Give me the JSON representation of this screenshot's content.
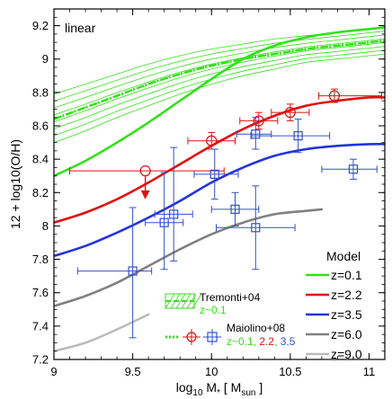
{
  "chart_data": {
    "type": "line",
    "panel_label": "linear",
    "xlabel": "log10 M* [ Msun ]",
    "ylabel": "12 + log10(O/H)",
    "xlim": [
      9,
      11.1
    ],
    "ylim": [
      7.2,
      9.3
    ],
    "x_ticks": [
      9,
      9.5,
      10,
      10.5,
      11
    ],
    "x_tick_labels": [
      "9",
      "9.5",
      "10",
      "10.5",
      "11"
    ],
    "y_ticks": [
      7.2,
      7.4,
      7.6,
      7.8,
      8,
      8.2,
      8.4,
      8.6,
      8.8,
      9,
      9.2
    ],
    "y_tick_labels": [
      "7.2",
      "7.4",
      "7.6",
      "7.8",
      "8",
      "8.2",
      "8.4",
      "8.6",
      "8.8",
      "9",
      "9.2"
    ],
    "legend_title": "Model",
    "series": [
      {
        "name": "z=0.1",
        "color": "#33e01a",
        "x": [
          9.0,
          9.2,
          9.4,
          9.6,
          9.8,
          10.0,
          10.2,
          10.4,
          10.6,
          10.8,
          11.0,
          11.1
        ],
        "y": [
          8.3,
          8.39,
          8.5,
          8.62,
          8.75,
          8.88,
          9.0,
          9.08,
          9.13,
          9.16,
          9.18,
          9.19
        ]
      },
      {
        "name": "z=2.2",
        "color": "#e01010",
        "x": [
          9.0,
          9.2,
          9.4,
          9.6,
          9.8,
          10.0,
          10.2,
          10.4,
          10.6,
          10.8,
          11.0,
          11.1
        ],
        "y": [
          8.02,
          8.08,
          8.16,
          8.26,
          8.37,
          8.48,
          8.58,
          8.66,
          8.72,
          8.75,
          8.77,
          8.77
        ]
      },
      {
        "name": "z=3.5",
        "color": "#2233dd",
        "x": [
          9.0,
          9.2,
          9.4,
          9.6,
          9.8,
          10.0,
          10.2,
          10.4,
          10.6,
          10.8,
          11.0,
          11.1
        ],
        "y": [
          7.82,
          7.88,
          7.96,
          8.05,
          8.15,
          8.26,
          8.35,
          8.42,
          8.46,
          8.48,
          8.49,
          8.49
        ]
      },
      {
        "name": "z=6.0",
        "color": "#808080",
        "x": [
          9.0,
          9.2,
          9.4,
          9.6,
          9.8,
          10.0,
          10.2,
          10.4,
          10.6,
          10.7
        ],
        "y": [
          7.52,
          7.58,
          7.66,
          7.76,
          7.86,
          7.95,
          8.02,
          8.07,
          8.09,
          8.1
        ]
      },
      {
        "name": "z=9.0",
        "color": "#bbbbbb",
        "x": [
          9.0,
          9.2,
          9.4,
          9.6
        ],
        "y": [
          7.25,
          7.3,
          7.38,
          7.47
        ]
      }
    ],
    "tremonti_band": {
      "label": "Tremonti+04",
      "sublabel": "z~0.1",
      "color": "#33e01a",
      "x": [
        9.0,
        9.2,
        9.4,
        9.6,
        9.8,
        10.0,
        10.2,
        10.4,
        10.6,
        10.8,
        11.0,
        11.1
      ],
      "y_mid": [
        8.64,
        8.71,
        8.78,
        8.85,
        8.91,
        8.96,
        9.0,
        9.03,
        9.06,
        9.08,
        9.1,
        9.11
      ],
      "y_lo": [
        8.5,
        8.57,
        8.65,
        8.72,
        8.79,
        8.85,
        8.9,
        8.94,
        8.98,
        9.0,
        9.02,
        9.03
      ],
      "y_hi": [
        8.79,
        8.85,
        8.91,
        8.97,
        9.02,
        9.06,
        9.09,
        9.12,
        9.14,
        9.16,
        9.18,
        9.19
      ]
    },
    "maiolino_legend": {
      "label": "Maiolino+08",
      "sub_z01": "z~0.1",
      "sub_sep": ",",
      "sub_z22": "2.2",
      "sub_z35": "3.5"
    },
    "maiolino_points": [
      {
        "group": "z=2.2",
        "color": "#e01010",
        "x": 10.0,
        "y": 8.51,
        "xerr": [
          0.15,
          0.15
        ],
        "yerr": [
          0.05,
          0.05
        ]
      },
      {
        "group": "z=2.2",
        "color": "#e01010",
        "x": 10.3,
        "y": 8.63,
        "xerr": [
          0.12,
          0.12
        ],
        "yerr": [
          0.05,
          0.05
        ]
      },
      {
        "group": "z=2.2",
        "color": "#e01010",
        "x": 10.5,
        "y": 8.68,
        "xerr": [
          0.12,
          0.12
        ],
        "yerr": [
          0.05,
          0.05
        ]
      },
      {
        "group": "z=2.2",
        "color": "#e01010",
        "x": 10.78,
        "y": 8.78,
        "xerr": [
          0.1,
          0.3
        ],
        "yerr": [
          0.04,
          0.04
        ]
      },
      {
        "group": "z=2.2",
        "color": "#e01010",
        "x": 9.58,
        "y": 8.33,
        "xerr": [
          0.48,
          0.5
        ],
        "yerr": [
          0,
          0
        ],
        "upper_limit": true
      },
      {
        "group": "z=3.5",
        "color": "#3050d0",
        "x": 9.5,
        "y": 7.73,
        "xerr": [
          0.35,
          0.12
        ],
        "yerr": [
          0.4,
          0.38
        ]
      },
      {
        "group": "z=3.5",
        "color": "#3050d0",
        "x": 9.7,
        "y": 8.02,
        "xerr": [
          0.12,
          0.12
        ],
        "yerr": [
          0.28,
          0.3
        ]
      },
      {
        "group": "z=3.5",
        "color": "#3050d0",
        "x": 9.76,
        "y": 8.07,
        "xerr": [
          0.12,
          0.12
        ],
        "yerr": [
          0.28,
          0.4
        ]
      },
      {
        "group": "z=3.5",
        "color": "#3050d0",
        "x": 10.02,
        "y": 8.31,
        "xerr": [
          0.13,
          0.15
        ],
        "yerr": [
          0.15,
          0.15
        ]
      },
      {
        "group": "z=3.5",
        "color": "#3050d0",
        "x": 10.15,
        "y": 8.1,
        "xerr": [
          0.15,
          0.15
        ],
        "yerr": [
          0.1,
          0.1
        ]
      },
      {
        "group": "z=3.5",
        "color": "#3050d0",
        "x": 10.28,
        "y": 7.99,
        "xerr": [
          0.25,
          0.25
        ],
        "yerr": [
          0.25,
          0.25
        ]
      },
      {
        "group": "z=3.5",
        "color": "#3050d0",
        "x": 10.28,
        "y": 8.55,
        "xerr": [
          0.12,
          0.1
        ],
        "yerr": [
          0.09,
          0.1
        ]
      },
      {
        "group": "z=3.5",
        "color": "#3050d0",
        "x": 10.55,
        "y": 8.54,
        "xerr": [
          0.3,
          0.2
        ],
        "yerr": [
          0.1,
          0.1
        ]
      },
      {
        "group": "z=3.5",
        "color": "#3050d0",
        "x": 10.9,
        "y": 8.34,
        "xerr": [
          0.2,
          0.15
        ],
        "yerr": [
          0.06,
          0.06
        ]
      }
    ]
  }
}
